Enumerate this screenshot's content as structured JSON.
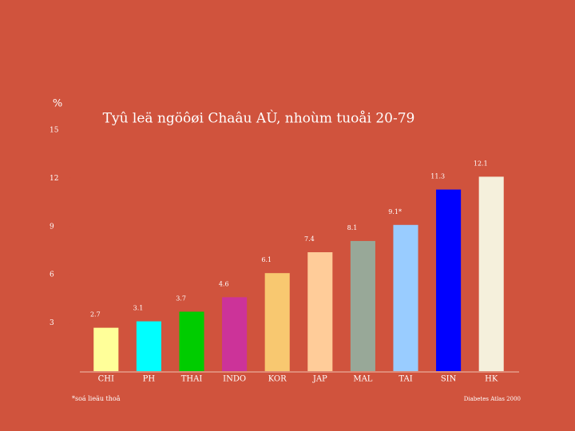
{
  "chart_data": {
    "type": "bar",
    "title": "Tyû leä ngöôøi Chaâu AÙ, nhoùm tuoåi  20-79",
    "y_label": "%",
    "categories": [
      "CHI",
      "PH",
      "THAI",
      "INDO",
      "KOR",
      "JAP",
      "MAL",
      "TAI",
      "SIN",
      "HK"
    ],
    "values": [
      2.7,
      3.1,
      3.7,
      4.6,
      6.1,
      7.4,
      8.1,
      9.1,
      11.3,
      12.1
    ],
    "value_labels": [
      "2.7",
      "3.1",
      "3.7",
      "4.6",
      "6.1",
      "7.4",
      "8.1",
      "9.1*",
      "11.3",
      "12.1"
    ],
    "colors": [
      "#ffff99",
      "#00ffff",
      "#00cc00",
      "#cc3399",
      "#f8c870",
      "#ffcc99",
      "#98a898",
      "#99ccff",
      "#0000ff",
      "#f5f0dc"
    ],
    "ylim": [
      0,
      15
    ],
    "yticks": [
      3,
      6,
      9,
      12,
      15
    ],
    "grid": false,
    "footnote": "*soá lieäu thoâ",
    "source": "Diabetes Atlas 2000"
  }
}
